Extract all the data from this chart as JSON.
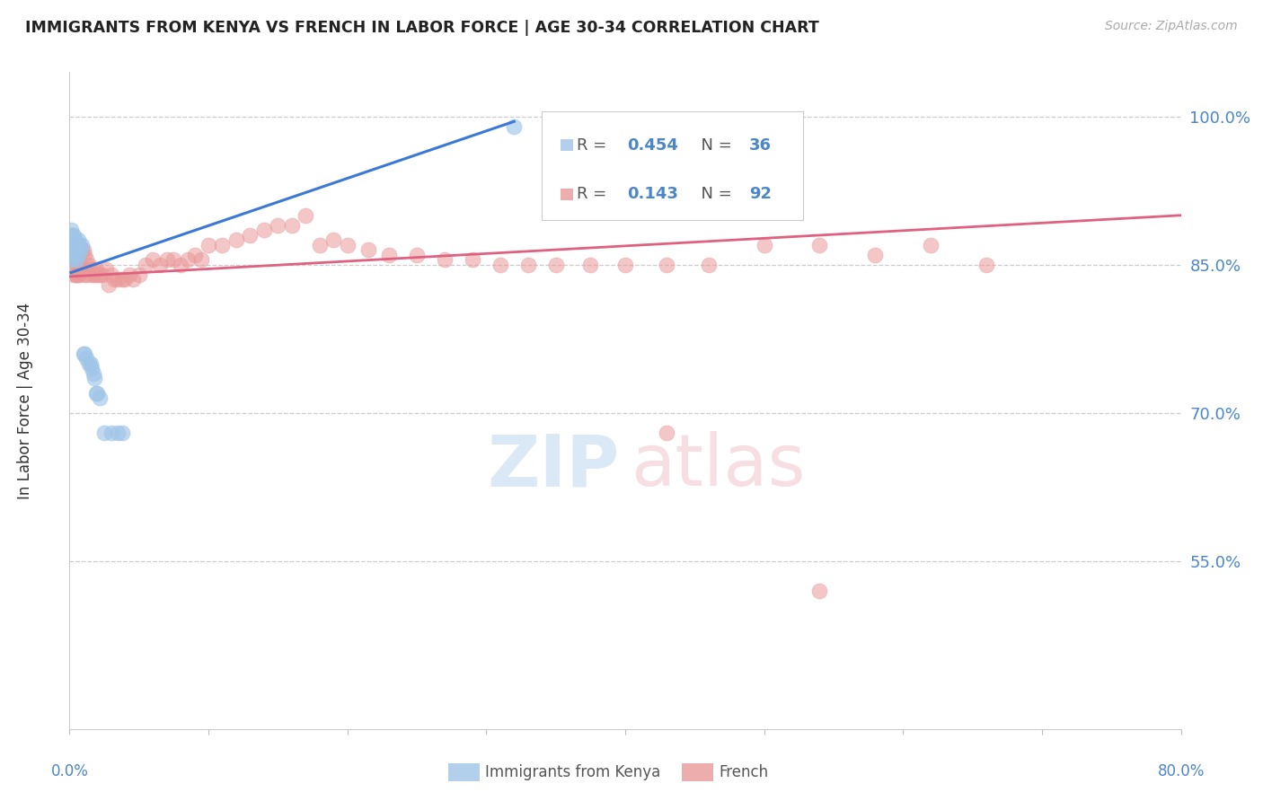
{
  "title": "IMMIGRANTS FROM KENYA VS FRENCH IN LABOR FORCE | AGE 30-34 CORRELATION CHART",
  "source": "Source: ZipAtlas.com",
  "ylabel": "In Labor Force | Age 30-34",
  "ytick_labels": [
    "100.0%",
    "85.0%",
    "70.0%",
    "55.0%"
  ],
  "ytick_values": [
    1.0,
    0.85,
    0.7,
    0.55
  ],
  "legend_label_kenya": "Immigrants from Kenya",
  "legend_label_french": "French",
  "legend_r_kenya": "0.454",
  "legend_n_kenya": "36",
  "legend_r_french": "0.143",
  "legend_n_french": "92",
  "blue_color": "#9fc5e8",
  "pink_color": "#ea9999",
  "trend_blue": "#3c78d8",
  "trend_pink": "#e06080",
  "title_color": "#222222",
  "axis_label_color": "#4a86c8",
  "source_color": "#aaaaaa",
  "xmin": 0.0,
  "xmax": 0.8,
  "ymin": 0.38,
  "ymax": 1.045,
  "kenya_x": [
    0.001,
    0.001,
    0.001,
    0.001,
    0.002,
    0.002,
    0.002,
    0.002,
    0.003,
    0.003,
    0.003,
    0.004,
    0.004,
    0.005,
    0.005,
    0.006,
    0.006,
    0.007,
    0.008,
    0.009,
    0.01,
    0.011,
    0.012,
    0.014,
    0.015,
    0.016,
    0.017,
    0.018,
    0.019,
    0.02,
    0.022,
    0.025,
    0.03,
    0.035,
    0.038,
    0.32
  ],
  "kenya_y": [
    0.885,
    0.875,
    0.87,
    0.86,
    0.88,
    0.87,
    0.86,
    0.855,
    0.88,
    0.87,
    0.865,
    0.875,
    0.86,
    0.87,
    0.855,
    0.875,
    0.86,
    0.87,
    0.865,
    0.87,
    0.76,
    0.76,
    0.755,
    0.75,
    0.75,
    0.745,
    0.74,
    0.735,
    0.72,
    0.72,
    0.715,
    0.68,
    0.68,
    0.68,
    0.68,
    0.99
  ],
  "french_x": [
    0.001,
    0.001,
    0.001,
    0.002,
    0.002,
    0.002,
    0.002,
    0.003,
    0.003,
    0.003,
    0.003,
    0.004,
    0.004,
    0.004,
    0.004,
    0.005,
    0.005,
    0.005,
    0.006,
    0.006,
    0.006,
    0.007,
    0.007,
    0.007,
    0.008,
    0.008,
    0.009,
    0.009,
    0.01,
    0.01,
    0.011,
    0.011,
    0.012,
    0.013,
    0.014,
    0.015,
    0.016,
    0.017,
    0.018,
    0.019,
    0.02,
    0.022,
    0.024,
    0.026,
    0.028,
    0.03,
    0.032,
    0.035,
    0.038,
    0.04,
    0.043,
    0.046,
    0.05,
    0.055,
    0.06,
    0.065,
    0.07,
    0.075,
    0.08,
    0.085,
    0.09,
    0.095,
    0.1,
    0.11,
    0.12,
    0.13,
    0.14,
    0.15,
    0.16,
    0.17,
    0.18,
    0.19,
    0.2,
    0.215,
    0.23,
    0.25,
    0.27,
    0.29,
    0.31,
    0.33,
    0.35,
    0.375,
    0.4,
    0.43,
    0.46,
    0.5,
    0.54,
    0.58,
    0.62,
    0.66,
    0.43,
    0.54
  ],
  "french_y": [
    0.87,
    0.86,
    0.85,
    0.88,
    0.865,
    0.855,
    0.845,
    0.87,
    0.865,
    0.855,
    0.84,
    0.87,
    0.86,
    0.855,
    0.84,
    0.87,
    0.865,
    0.84,
    0.87,
    0.86,
    0.84,
    0.87,
    0.855,
    0.84,
    0.865,
    0.845,
    0.865,
    0.845,
    0.865,
    0.845,
    0.86,
    0.84,
    0.855,
    0.84,
    0.85,
    0.845,
    0.84,
    0.845,
    0.84,
    0.845,
    0.84,
    0.84,
    0.84,
    0.845,
    0.83,
    0.84,
    0.835,
    0.835,
    0.835,
    0.835,
    0.84,
    0.835,
    0.84,
    0.85,
    0.855,
    0.85,
    0.855,
    0.855,
    0.85,
    0.855,
    0.86,
    0.855,
    0.87,
    0.87,
    0.875,
    0.88,
    0.885,
    0.89,
    0.89,
    0.9,
    0.87,
    0.875,
    0.87,
    0.865,
    0.86,
    0.86,
    0.855,
    0.855,
    0.85,
    0.85,
    0.85,
    0.85,
    0.85,
    0.85,
    0.85,
    0.87,
    0.87,
    0.86,
    0.87,
    0.85,
    0.68,
    0.52
  ],
  "kenya_trend_x": [
    0.001,
    0.32
  ],
  "kenya_trend_y": [
    0.842,
    0.995
  ],
  "french_trend_x": [
    0.0,
    0.8
  ],
  "french_trend_y": [
    0.838,
    0.9
  ]
}
